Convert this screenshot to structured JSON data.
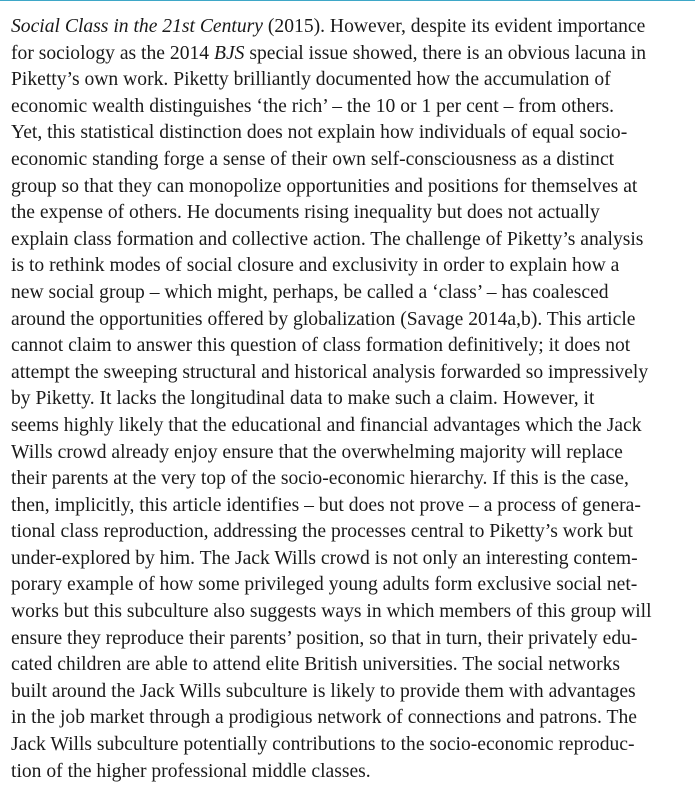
{
  "document": {
    "lines": [
      {
        "italic": "Social Class in the 21st Century",
        "rest": " (2015). However, despite its evident importance"
      },
      {
        "pre": "for sociology as the 2014 ",
        "italic": "BJS",
        "rest": " special issue showed, there is an obvious lacuna in"
      },
      {
        "text": "Piketty’s own work. Piketty brilliantly documented how the accumulation of"
      },
      {
        "text": "economic wealth distinguishes ‘the rich’ – the 10 or 1 per cent – from others."
      },
      {
        "text": "Yet, this statistical distinction does not explain how individuals of equal socio-"
      },
      {
        "text": "economic standing forge a sense of their own self-consciousness as a distinct"
      },
      {
        "text": "group so that they can monopolize opportunities and positions for themselves at"
      },
      {
        "text": "the expense of others. He documents rising inequality but does not actually"
      },
      {
        "text": "explain class formation and collective action. The challenge of Piketty’s analysis"
      },
      {
        "text": "is to rethink modes of social closure and exclusivity in order to explain how a"
      },
      {
        "text": "new social group – which might, perhaps, be called a ‘class’ – has coalesced"
      },
      {
        "text": "around the opportunities offered by globalization (Savage 2014a,b). This article"
      },
      {
        "text": "cannot claim to answer this question of class formation definitively; it does not"
      },
      {
        "text": "attempt the sweeping structural and historical analysis forwarded so impressively"
      },
      {
        "text": "by Piketty. It lacks the longitudinal data to make such a claim. However, it"
      },
      {
        "text": "seems highly likely that the educational and financial advantages which the Jack"
      },
      {
        "text": "Wills crowd already enjoy ensure that the overwhelming majority will replace"
      },
      {
        "text": "their parents at the very top of the socio-economic hierarchy. If this is the case,"
      },
      {
        "text": "then, implicitly, this article identifies – but does not prove – a process of genera-"
      },
      {
        "text": "tional class reproduction, addressing the processes central to Piketty’s work but"
      },
      {
        "text": "under-explored by him. The Jack Wills crowd is not only an interesting contem-"
      },
      {
        "text": "porary example of how some privileged young adults form exclusive social net-"
      },
      {
        "text": "works but this subculture also suggests ways in which members of this group will"
      },
      {
        "text": "ensure they reproduce their parents’ position, so that in turn, their privately edu-"
      },
      {
        "text": "cated children are able to attend elite British universities. The social networks"
      },
      {
        "text": "built around the Jack Wills subculture is likely to provide them with advantages"
      },
      {
        "text": "in the job market through a prodigious network of connections and patrons. The"
      },
      {
        "text": "Jack Wills subculture potentially contributions to the socio-economic reproduc-"
      },
      {
        "text": "tion of the higher professional middle classes."
      }
    ]
  },
  "colors": {
    "text": "#1a1a1a",
    "top_rule": "#3ea7c7"
  }
}
